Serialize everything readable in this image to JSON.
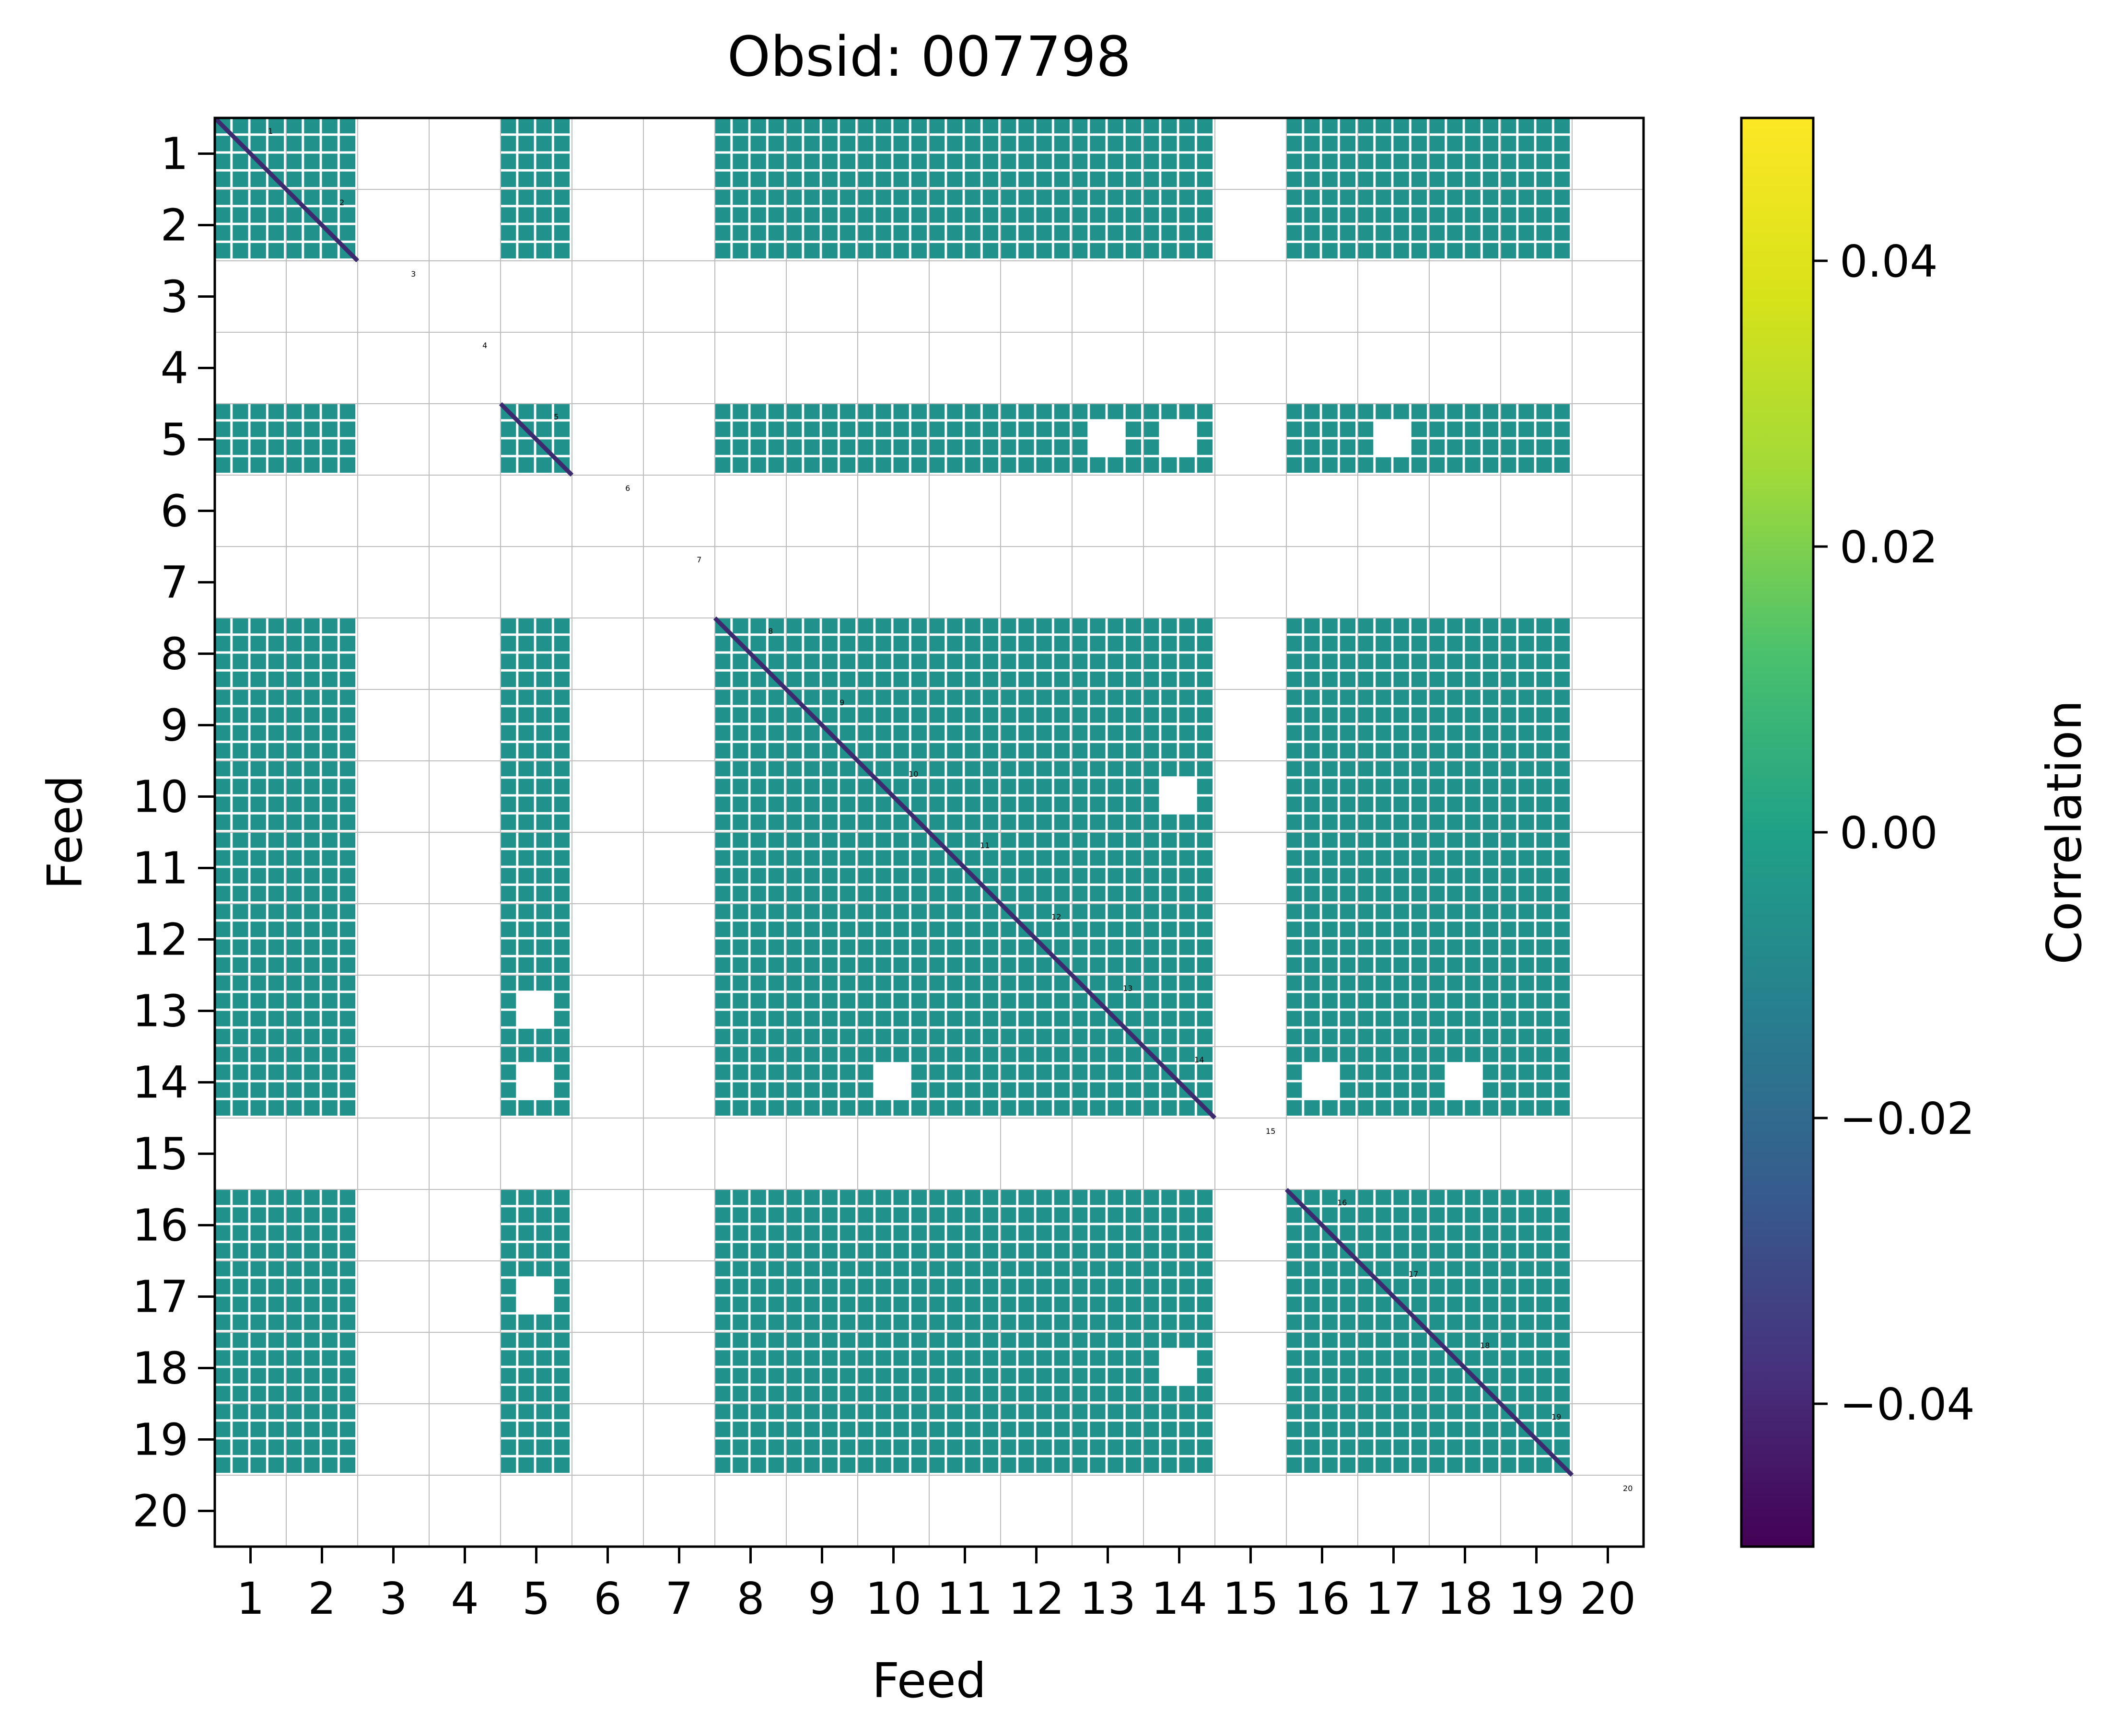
{
  "chart_data": {
    "type": "heatmap",
    "title": "Obsid: 007798",
    "xlabel": "Feed",
    "ylabel": "Feed",
    "feeds": [
      "1",
      "2",
      "3",
      "4",
      "5",
      "6",
      "7",
      "8",
      "9",
      "10",
      "11",
      "12",
      "13",
      "14",
      "15",
      "16",
      "17",
      "18",
      "19",
      "20"
    ],
    "active_feeds": [
      1,
      2,
      5,
      8,
      9,
      10,
      11,
      12,
      13,
      14,
      16,
      17,
      18,
      19
    ],
    "missing_feeds": [
      3,
      4,
      6,
      7,
      15,
      20
    ],
    "sidebands_per_feed": 4,
    "cell_value": 0.0,
    "diagonal_value": -0.05,
    "masked_regions": [
      {
        "row_feed": 5,
        "col_feed": 13,
        "note": "partially masked"
      },
      {
        "row_feed": 5,
        "col_feed": 14,
        "note": "partially masked"
      },
      {
        "row_feed": 5,
        "col_feed": 17,
        "note": "partially masked"
      },
      {
        "row_feed": 10,
        "col_feed": 14,
        "note": "partially masked"
      },
      {
        "row_feed": 13,
        "col_feed": 5,
        "note": "partially masked"
      },
      {
        "row_feed": 14,
        "col_feed": 5,
        "note": "partially masked"
      },
      {
        "row_feed": 14,
        "col_feed": 10,
        "note": "partially masked"
      },
      {
        "row_feed": 14,
        "col_feed": 16,
        "note": "partially masked"
      },
      {
        "row_feed": 14,
        "col_feed": 18,
        "note": "partially masked"
      },
      {
        "row_feed": 17,
        "col_feed": 5,
        "note": "partially masked"
      },
      {
        "row_feed": 18,
        "col_feed": 14,
        "note": "partially masked"
      }
    ],
    "colorbar": {
      "label": "Correlation",
      "vmin": -0.05,
      "vmax": 0.05,
      "ticks": [
        -0.04,
        -0.02,
        0.0,
        0.02,
        0.04
      ],
      "tick_labels": [
        "−0.04",
        "−0.02",
        "0.00",
        "0.02",
        "0.04"
      ],
      "colormap": "viridis"
    }
  },
  "colors": {
    "cell": "#21918c",
    "diagonal": "#3b2a6e",
    "grid": "#bdbdbd",
    "background": "#ffffff"
  }
}
